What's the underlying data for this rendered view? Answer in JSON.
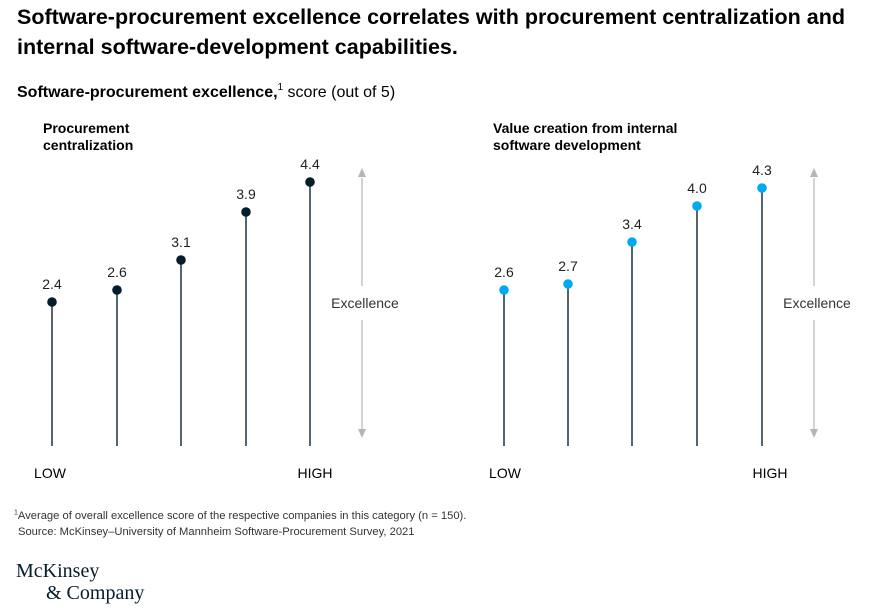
{
  "title": "Software-procurement excellence correlates with procurement centralization and internal software-development capabilities.",
  "subtitle": {
    "bold": "Software-procurement excellence,",
    "note_marker": "1",
    "rest": " score (out of 5)"
  },
  "colors": {
    "left_dots": "#051c2c",
    "right_dots": "#00a9f4",
    "stems": "#2b3d4a",
    "arrows": "#b5b5b5"
  },
  "chart_data": [
    {
      "type": "lollipop",
      "title": "Procurement centralization",
      "categories": [
        "LOW",
        "",
        "",
        "",
        "HIGH"
      ],
      "values": [
        2.4,
        2.6,
        3.1,
        3.9,
        4.4
      ],
      "value_labels": [
        "2.4",
        "2.6",
        "3.1",
        "3.9",
        "4.4"
      ],
      "axis_low_label": "LOW",
      "axis_high_label": "HIGH",
      "arrow_label": "Excellence",
      "ylim": [
        0,
        5
      ],
      "grid": false
    },
    {
      "type": "lollipop",
      "title": "Value creation from internal software development",
      "categories": [
        "LOW",
        "",
        "",
        "",
        "HIGH"
      ],
      "values": [
        2.6,
        2.7,
        3.4,
        4.0,
        4.3
      ],
      "value_labels": [
        "2.6",
        "2.7",
        "3.4",
        "4.0",
        "4.3"
      ],
      "axis_low_label": "LOW",
      "axis_high_label": "HIGH",
      "arrow_label": "Excellence",
      "ylim": [
        0,
        5
      ],
      "grid": false
    }
  ],
  "footnote": {
    "marker": "1",
    "text": "Average of overall excellence score of the respective companies in this category (n = 150).",
    "source": "Source: McKinsey–University of Mannheim Software-Procurement Survey, 2021"
  },
  "logo": {
    "line1": "McKinsey",
    "line2": "& Company"
  }
}
